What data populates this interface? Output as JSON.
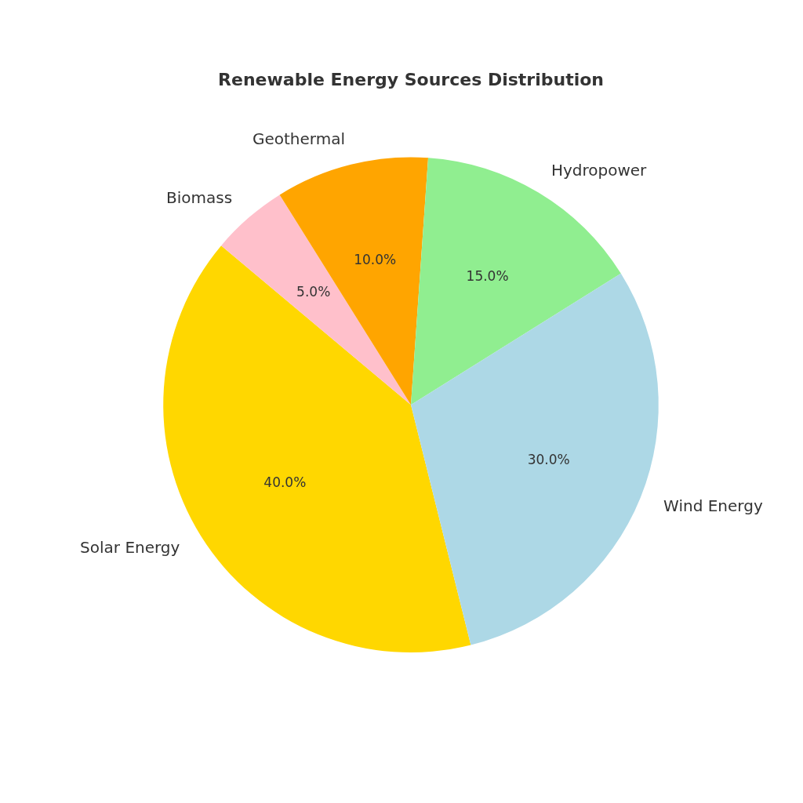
{
  "chart_data": {
    "type": "pie",
    "title": "Renewable Energy Sources Distribution",
    "categories": [
      "Solar Energy",
      "Biomass",
      "Geothermal",
      "Hydropower",
      "Wind Energy"
    ],
    "values": [
      40,
      5,
      10,
      15,
      30
    ],
    "value_labels": [
      "40.0%",
      "5.0%",
      "10.0%",
      "15.0%",
      "30.0%"
    ],
    "colors": [
      "#ffd700",
      "#ffc0cb",
      "#ffa500",
      "#90ee90",
      "#add8e6"
    ],
    "data_labels": true
  }
}
